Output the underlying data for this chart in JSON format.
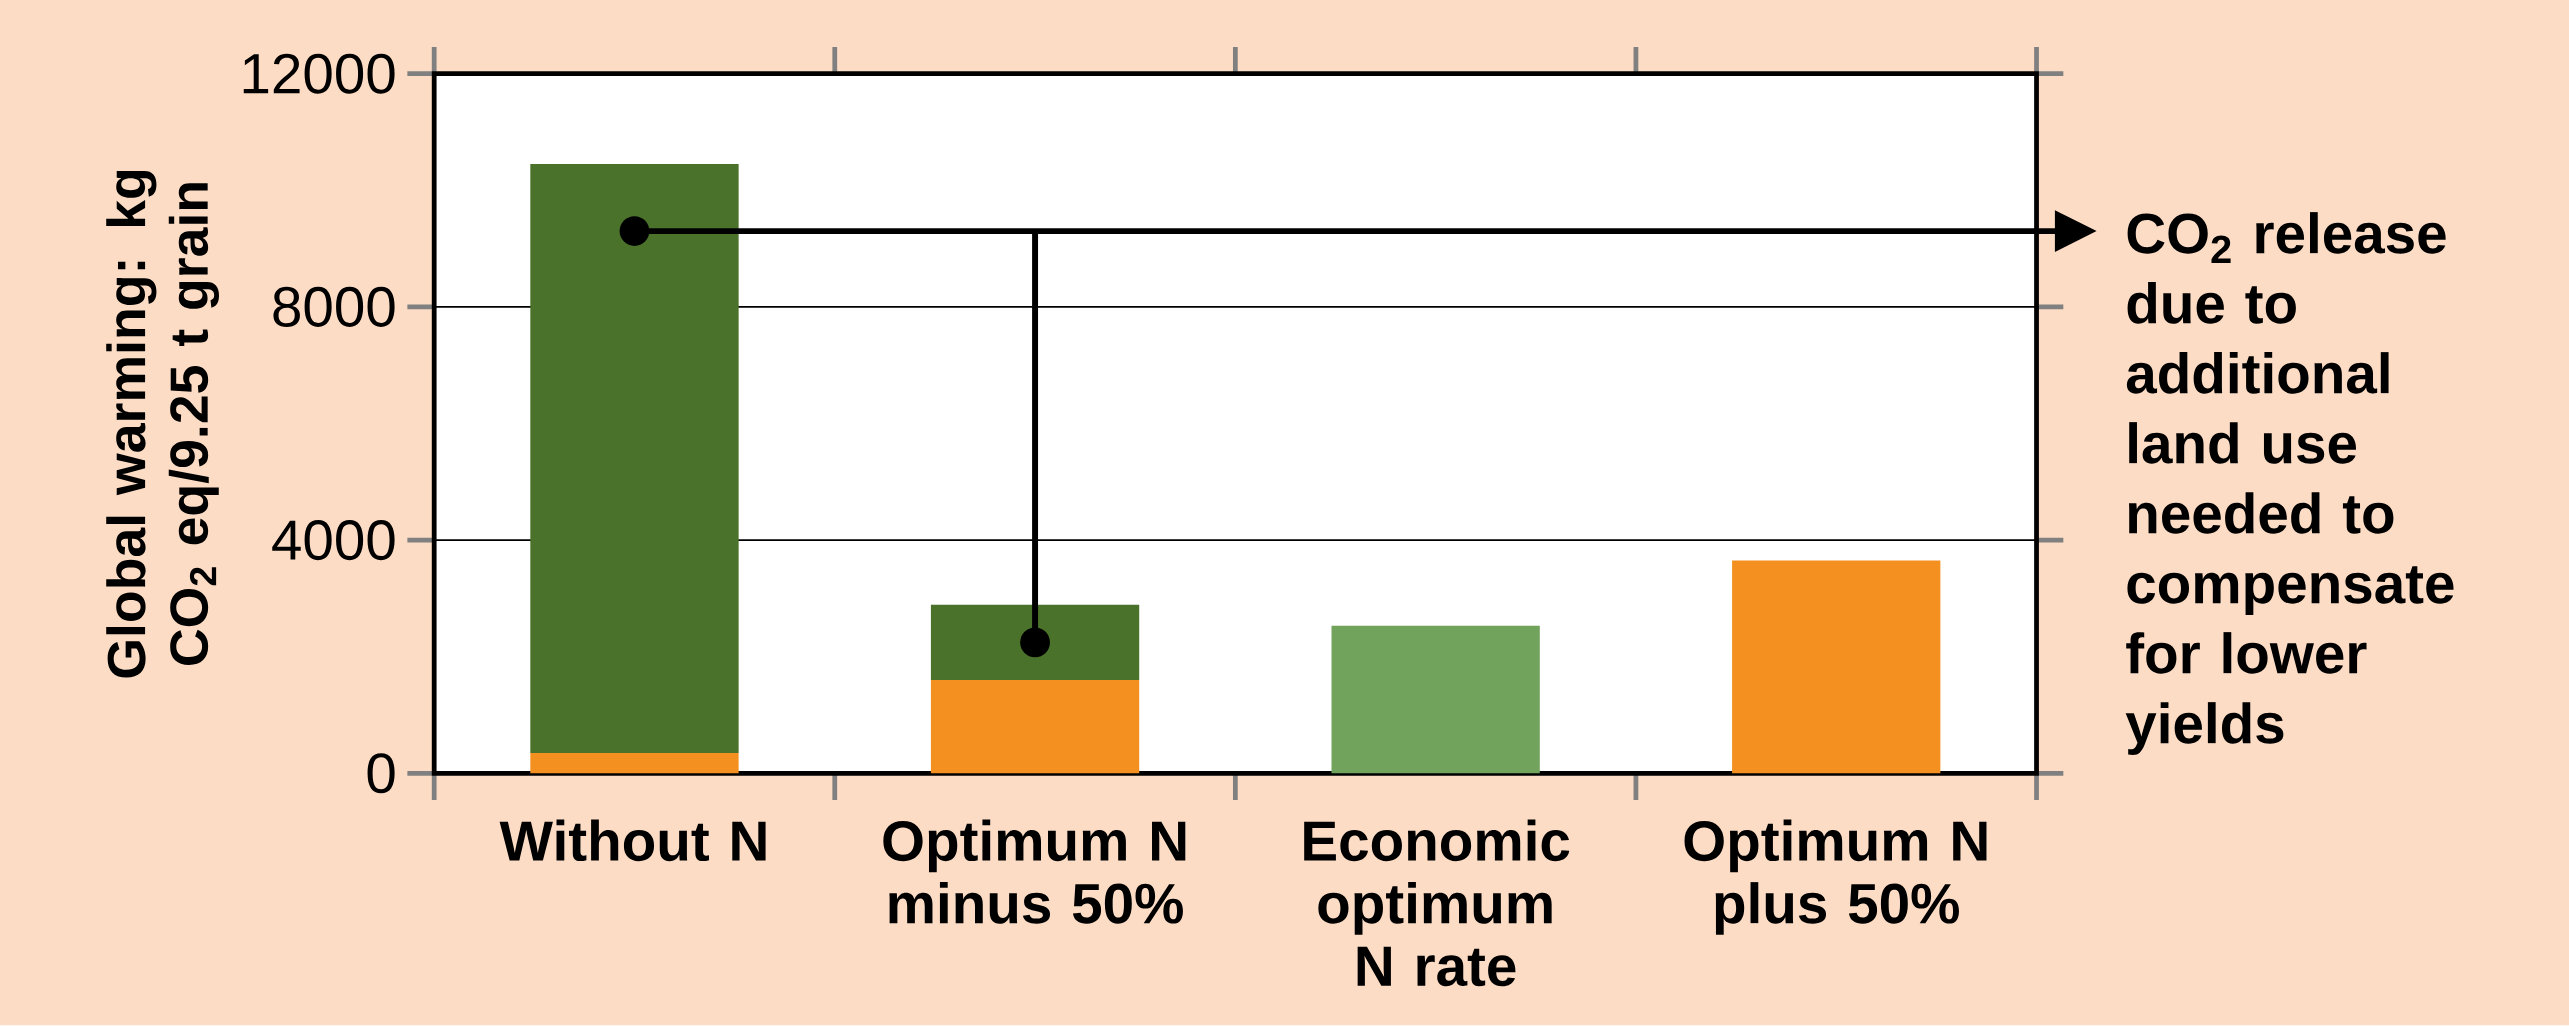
{
  "chart_data": {
    "type": "bar",
    "stacked": true,
    "ylabel": "Global warming: kg CO$_{2}$ eq/9.25 t grain",
    "categories": [
      "Without N",
      "Optimum N minus 50%",
      "Economic optimum N rate",
      "Optimum N plus 50%"
    ],
    "series": [
      {
        "color": "#f39020",
        "values": [
          350,
          1600,
          null,
          3650
        ]
      },
      {
        "color": "#4a722a",
        "values": [
          10100,
          1290,
          null,
          null
        ]
      },
      {
        "color": "#71a35d",
        "values": [
          null,
          null,
          2530,
          null
        ]
      }
    ],
    "ylim": [
      0,
      12000
    ],
    "yticks": [
      0,
      4000,
      8000,
      12000
    ],
    "grid": "y",
    "annotations": [
      "CO$_{2}$ release due to additional land use needed to compensate for lower yields"
    ]
  }
}
